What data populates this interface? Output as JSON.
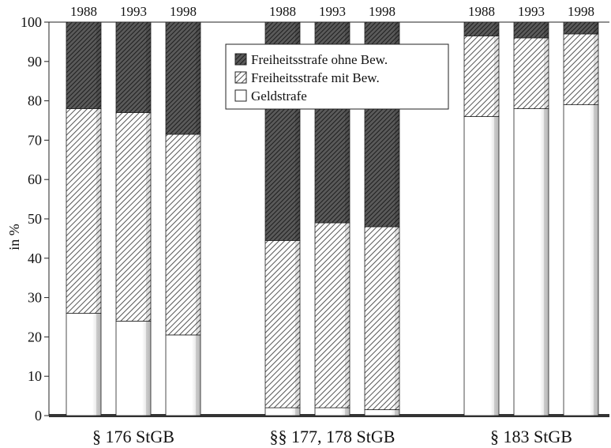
{
  "chart_data": {
    "type": "bar",
    "stacked": true,
    "ylabel": "in %",
    "ylim": [
      0,
      100
    ],
    "yticks": [
      0,
      10,
      20,
      30,
      40,
      50,
      60,
      70,
      80,
      90,
      100
    ],
    "groups": [
      {
        "label": "§ 176 StGB",
        "years": [
          "1988",
          "1993",
          "1998"
        ],
        "geldstrafe": [
          26,
          24,
          20.5
        ],
        "mit_bew": [
          52,
          53,
          51
        ],
        "ohne_bew": [
          22,
          23,
          28.5
        ]
      },
      {
        "label": "§§ 177, 178 StGB",
        "years": [
          "1988",
          "1993",
          "1998"
        ],
        "geldstrafe": [
          2,
          2,
          1.5
        ],
        "mit_bew": [
          42.5,
          47,
          46.5
        ],
        "ohne_bew": [
          55.5,
          51,
          52
        ]
      },
      {
        "label": "§ 183 StGB",
        "years": [
          "1988",
          "1993",
          "1998"
        ],
        "geldstrafe": [
          76,
          78,
          79
        ],
        "mit_bew": [
          20.5,
          18,
          18
        ],
        "ohne_bew": [
          3.5,
          4,
          3
        ]
      }
    ],
    "legend": {
      "position": "top-center",
      "entries": [
        {
          "key": "ohne_bew",
          "label": "Freiheitsstrafe ohne Bew."
        },
        {
          "key": "mit_bew",
          "label": "Freiheitsstrafe mit Bew."
        },
        {
          "key": "geldstrafe",
          "label": "Geldstrafe"
        }
      ]
    },
    "colors": {
      "ohne_bew": "#3a3a3a",
      "mit_bew": "#7a7a7a",
      "geldstrafe": "#ffffff"
    }
  }
}
